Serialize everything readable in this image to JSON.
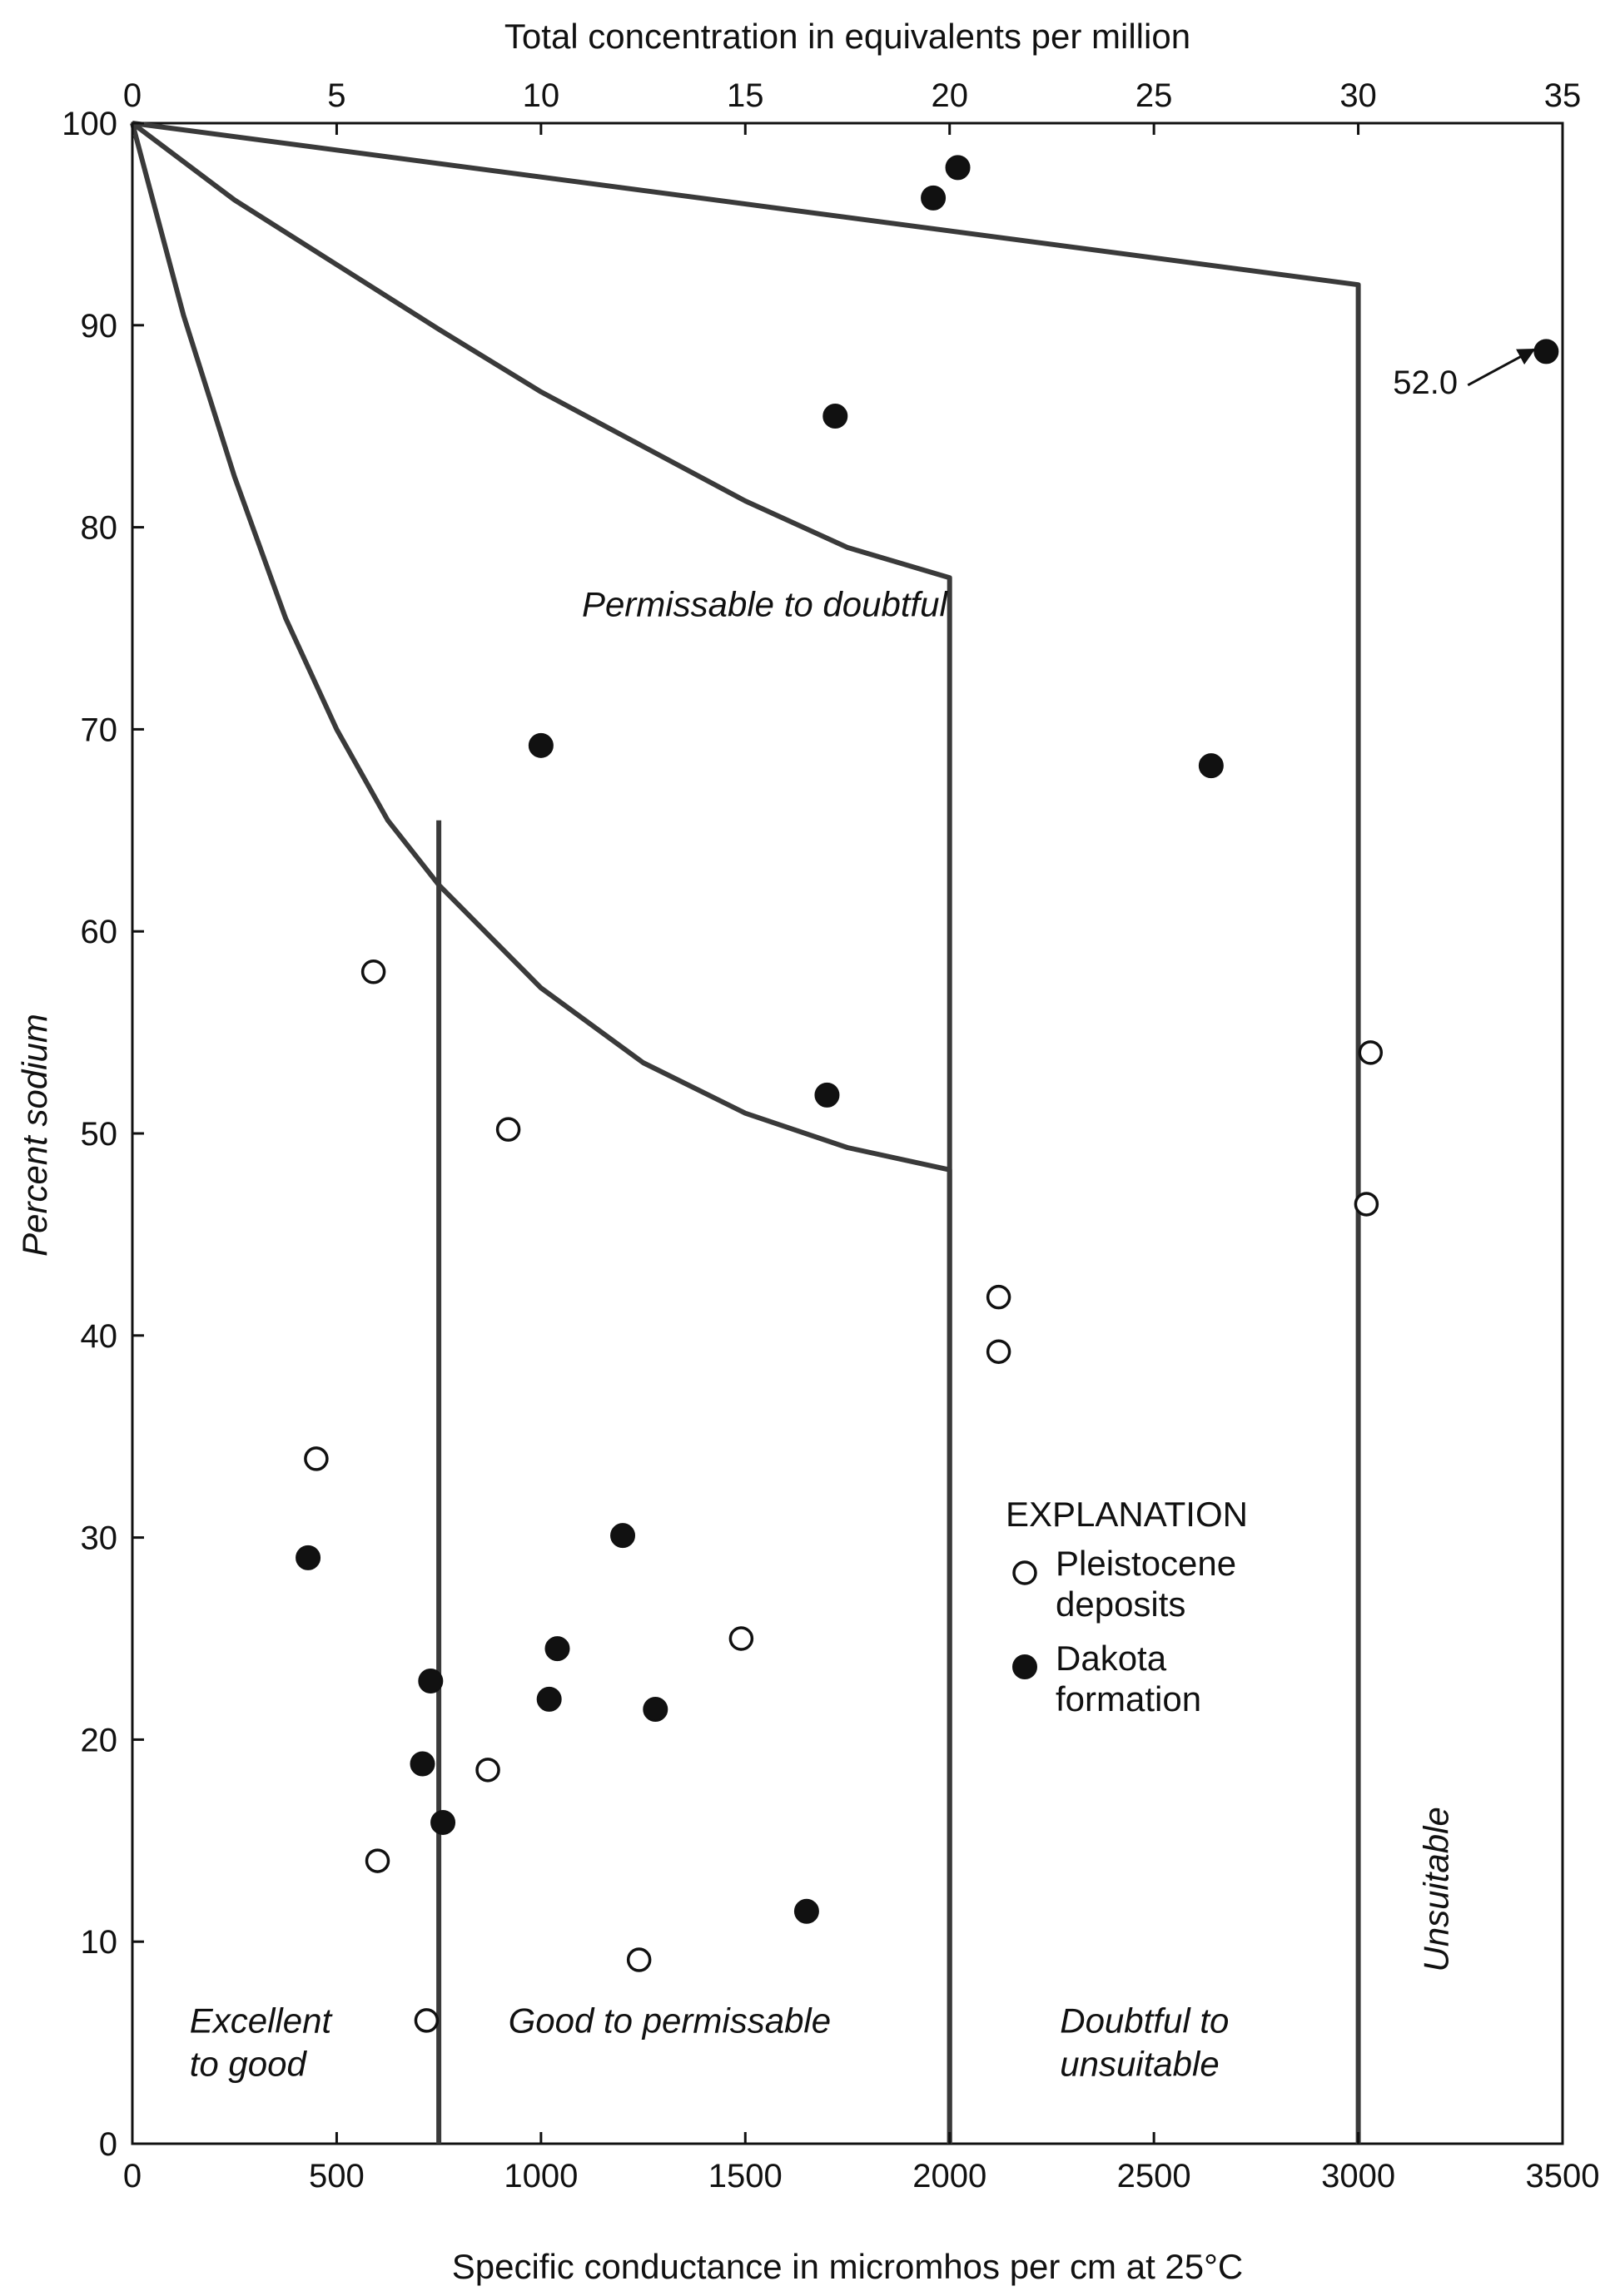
{
  "chart_data": {
    "type": "scatter",
    "top_axis_title": "Total concentration in equivalents per million",
    "xlabel": "Specific conductance in micromhos per cm at 25°C",
    "ylabel": "Percent sodium",
    "xlim": [
      0,
      3500
    ],
    "ylim": [
      0,
      100
    ],
    "top_axis_lim": [
      0,
      35
    ],
    "x_ticks": [
      "0",
      "500",
      "1000",
      "1500",
      "2000",
      "2500",
      "3000",
      "3500"
    ],
    "y_ticks": [
      "0",
      "10",
      "20",
      "30",
      "40",
      "50",
      "60",
      "70",
      "80",
      "90",
      "100"
    ],
    "top_ticks": [
      "0",
      "5",
      "10",
      "15",
      "20",
      "25",
      "30",
      "35"
    ],
    "x_tick_values": [
      0,
      500,
      1000,
      1500,
      2000,
      2500,
      3000,
      3500
    ],
    "y_tick_values": [
      0,
      10,
      20,
      30,
      40,
      50,
      60,
      70,
      80,
      90,
      100
    ],
    "top_tick_values": [
      0,
      500,
      1000,
      1500,
      2000,
      2500,
      3000,
      3500
    ],
    "grid": false,
    "legend_position": "right",
    "legend": {
      "title": "EXPLANATION",
      "entries": [
        {
          "lines": [
            "Pleistocene",
            "deposits"
          ],
          "marker": "open"
        },
        {
          "lines": [
            "Dakota",
            "formation"
          ],
          "marker": "filled"
        }
      ]
    },
    "regions": [
      {
        "lines": [
          "Permissable to doubtful"
        ],
        "x": 1100,
        "y": 75.6
      },
      {
        "lines": [
          "Excellent",
          "to good"
        ],
        "x": 140,
        "y": 5.5
      },
      {
        "lines": [
          "Good to permissable"
        ],
        "x": 920,
        "y": 5.5
      },
      {
        "lines": [
          "Doubtful to",
          "unsuitable"
        ],
        "x": 2270,
        "y": 5.5
      },
      {
        "lines": [
          "Unsuitable"
        ],
        "x": 3220,
        "y": 8.5,
        "rotate": -90
      }
    ],
    "boundaries": [
      {
        "points": [
          [
            0,
            100
          ],
          [
            3000,
            92
          ],
          [
            3000,
            0
          ]
        ]
      },
      {
        "points": [
          [
            0,
            100
          ],
          [
            250,
            96.2
          ],
          [
            500,
            93
          ],
          [
            750,
            89.8
          ],
          [
            1000,
            86.7
          ],
          [
            1250,
            84
          ],
          [
            1500,
            81.3
          ],
          [
            1750,
            79
          ],
          [
            2000,
            77.5
          ],
          [
            2000,
            0
          ]
        ]
      },
      {
        "points": [
          [
            0,
            100
          ],
          [
            125,
            90.5
          ],
          [
            250,
            82.5
          ],
          [
            375,
            75.5
          ],
          [
            500,
            70
          ],
          [
            625,
            65.5
          ],
          [
            750,
            62.3
          ],
          [
            1000,
            57.2
          ],
          [
            1250,
            53.5
          ],
          [
            1500,
            51
          ],
          [
            1750,
            49.3
          ],
          [
            2000,
            48.2
          ],
          [
            2000,
            0
          ]
        ]
      },
      {
        "points": [
          [
            750,
            65.5
          ],
          [
            750,
            0
          ]
        ]
      }
    ],
    "series": [
      {
        "name": "Pleistocene deposits",
        "marker": "open",
        "points": [
          [
            590,
            58
          ],
          [
            920,
            50.2
          ],
          [
            3030,
            54
          ],
          [
            3020,
            46.5
          ],
          [
            2120,
            41.9
          ],
          [
            2120,
            39.2
          ],
          [
            450,
            33.9
          ],
          [
            1490,
            25
          ],
          [
            870,
            18.5
          ],
          [
            600,
            14
          ],
          [
            1240,
            9.1
          ],
          [
            720,
            6.1
          ]
        ]
      },
      {
        "name": "Dakota formation",
        "marker": "filled",
        "points": [
          [
            1960,
            96.3
          ],
          [
            2020,
            97.8
          ],
          [
            1720,
            85.5
          ],
          [
            1000,
            69.2
          ],
          [
            2640,
            68.2
          ],
          [
            1700,
            51.9
          ],
          [
            1200,
            30.1
          ],
          [
            430,
            29
          ],
          [
            1040,
            24.5
          ],
          [
            730,
            22.9
          ],
          [
            1020,
            22
          ],
          [
            1280,
            21.5
          ],
          [
            710,
            18.8
          ],
          [
            760,
            15.9
          ],
          [
            1650,
            11.5
          ],
          [
            3460,
            88.7
          ]
        ]
      }
    ],
    "annotations": [
      {
        "text": "52.0",
        "x": 3085,
        "y": 87.2,
        "arrow_to": [
          3430,
          88.8
        ]
      }
    ]
  }
}
